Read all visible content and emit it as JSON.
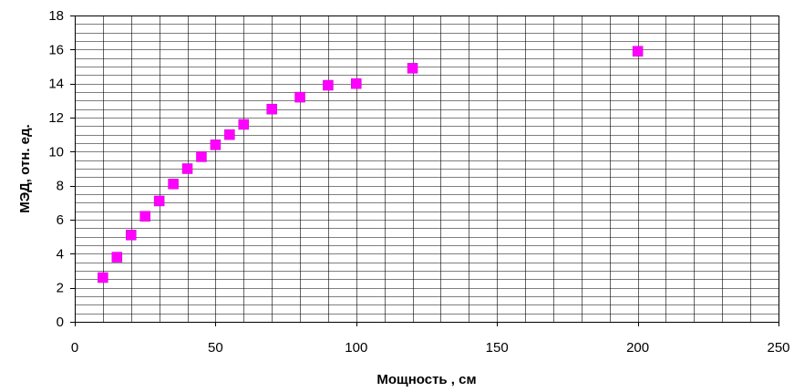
{
  "chart_data": {
    "type": "scatter",
    "title": "",
    "xlabel": "Мощность , см",
    "ylabel": "МЭД, отн. ед.",
    "xlim": [
      0,
      250
    ],
    "ylim": [
      0,
      18
    ],
    "x_ticks": [
      0,
      50,
      100,
      150,
      200,
      250
    ],
    "y_ticks": [
      0,
      2,
      4,
      6,
      8,
      10,
      12,
      14,
      16,
      18
    ],
    "x_minor_step": 10,
    "y_minor_step": 0.5,
    "grid": true,
    "legend": "none",
    "marker": "square",
    "marker_color": "#FF00FF",
    "series": [
      {
        "points": [
          {
            "x": 10,
            "y": 2.6
          },
          {
            "x": 15,
            "y": 3.8
          },
          {
            "x": 20,
            "y": 5.1
          },
          {
            "x": 25,
            "y": 6.2
          },
          {
            "x": 30,
            "y": 7.1
          },
          {
            "x": 35,
            "y": 8.1
          },
          {
            "x": 40,
            "y": 9.0
          },
          {
            "x": 45,
            "y": 9.7
          },
          {
            "x": 50,
            "y": 10.4
          },
          {
            "x": 55,
            "y": 11.0
          },
          {
            "x": 60,
            "y": 11.6
          },
          {
            "x": 70,
            "y": 12.5
          },
          {
            "x": 80,
            "y": 13.2
          },
          {
            "x": 90,
            "y": 13.9
          },
          {
            "x": 100,
            "y": 14.0
          },
          {
            "x": 120,
            "y": 14.9
          },
          {
            "x": 200,
            "y": 15.9
          }
        ]
      }
    ]
  }
}
